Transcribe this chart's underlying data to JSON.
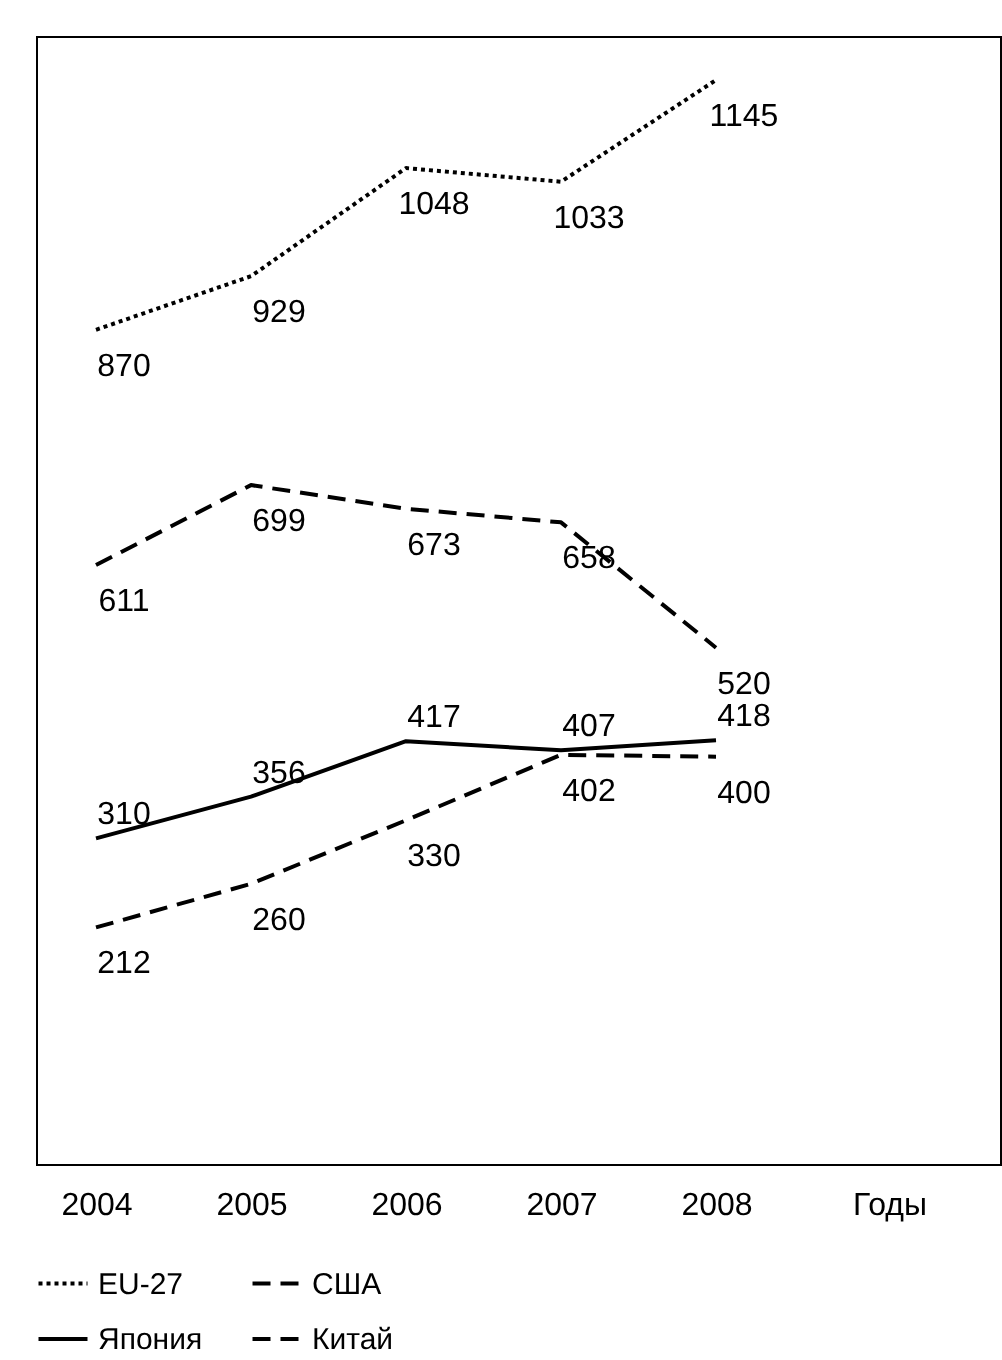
{
  "chart_data": {
    "type": "line",
    "xlabel": "Годы",
    "categories": [
      "2004",
      "2005",
      "2006",
      "2007",
      "2008"
    ],
    "series": [
      {
        "name": "EU-27",
        "color": "#000000",
        "line_style": "dotted",
        "values": [
          870,
          929,
          1048,
          1033,
          1145
        ]
      },
      {
        "name": "США",
        "color": "#000000",
        "line_style": "dashed",
        "values": [
          611,
          699,
          673,
          658,
          520
        ]
      },
      {
        "name": "Япония",
        "color": "#000000",
        "line_style": "solid",
        "values": [
          310,
          356,
          417,
          407,
          418
        ]
      },
      {
        "name": "Китай",
        "color": "#000000",
        "line_style": "dashed",
        "values": [
          212,
          260,
          330,
          402,
          400
        ]
      }
    ],
    "data_labels": true,
    "legend": "bottom",
    "marker": "none",
    "grid": false
  }
}
